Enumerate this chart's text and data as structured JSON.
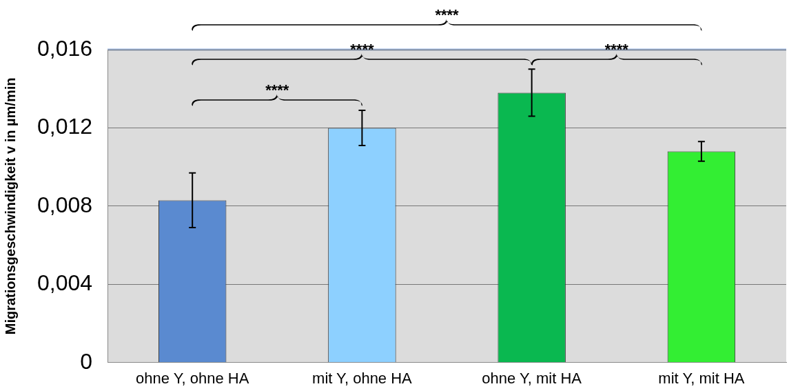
{
  "chart_data": {
    "type": "bar",
    "ylabel": "Migrationsgeschwindigkeit v in µm/min",
    "categories": [
      "ohne Y, ohne HA",
      "mit Y, ohne HA",
      "ohne Y, mit HA",
      "mit Y, mit HA"
    ],
    "values": [
      0.0083,
      0.012,
      0.0138,
      0.0108
    ],
    "colors": [
      "#5a8ad0",
      "#8dd0ff",
      "#0ab850",
      "#33ee33"
    ],
    "errors": [
      0.0014,
      0.0009,
      0.0012,
      0.0005
    ],
    "ylim": [
      0,
      0.016
    ],
    "yticks": [
      0,
      {
        "value": 0.004,
        "label": "0,004"
      },
      {
        "value": 0.008,
        "label": "0,008"
      },
      {
        "value": 0.012,
        "label": "0,012"
      },
      {
        "value": 0.016,
        "label": "0,016"
      }
    ],
    "grid": "y",
    "legend": false,
    "annotations": [
      "****",
      "****",
      "****",
      "****"
    ]
  }
}
